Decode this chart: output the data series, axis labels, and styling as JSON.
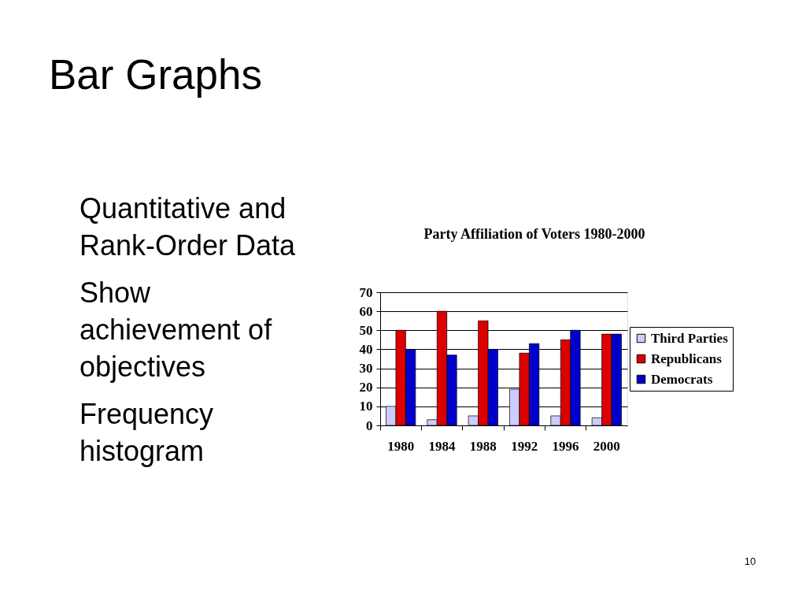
{
  "chart_data": [
    {
      "type": "other",
      "title": "Bar Graphs",
      "annotations": [
        "Quantitative and Rank-Order Data",
        "Show achievement of objectives",
        "Frequency histogram",
        "10"
      ]
    },
    {
      "type": "bar",
      "title": "Party Affiliation of Voters 1980-2000",
      "categories": [
        "1980",
        "1984",
        "1988",
        "1992",
        "1996",
        "2000"
      ],
      "series": [
        {
          "name": "Third Parties",
          "color": "#ccccff",
          "values": [
            10,
            3,
            5,
            19,
            5,
            4
          ]
        },
        {
          "name": "Republicans",
          "color": "#dd0000",
          "values": [
            50,
            60,
            55,
            38,
            45,
            48
          ]
        },
        {
          "name": "Democrats",
          "color": "#0000cc",
          "values": [
            40,
            37,
            40,
            43,
            50,
            48
          ]
        }
      ],
      "ylim": [
        0,
        70
      ],
      "yticks": [
        0,
        10,
        20,
        30,
        40,
        50,
        60,
        70
      ],
      "grid": "y",
      "legend": "right"
    }
  ]
}
